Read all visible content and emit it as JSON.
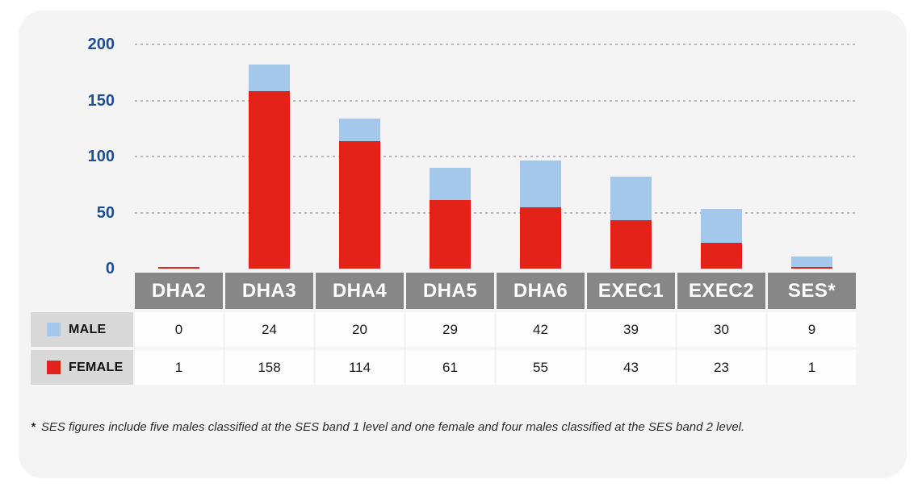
{
  "chart_data": {
    "type": "bar",
    "stacked": true,
    "orientation": "vertical",
    "categories": [
      "DHA2",
      "DHA3",
      "DHA4",
      "DHA5",
      "DHA6",
      "EXEC1",
      "EXEC2",
      "SES*"
    ],
    "series": [
      {
        "name": "MALE",
        "color": "#a3c8ec",
        "values": [
          0,
          24,
          20,
          29,
          42,
          39,
          30,
          9
        ]
      },
      {
        "name": "FEMALE",
        "color": "#e3231a",
        "values": [
          1,
          158,
          114,
          61,
          55,
          43,
          23,
          1
        ]
      }
    ],
    "title": "",
    "xlabel": "",
    "ylabel": "",
    "ylim": [
      0,
      200
    ],
    "yticks": [
      0,
      50,
      100,
      150,
      200
    ],
    "grid": "horizontal dotted",
    "legend_position": "left of data table rows"
  },
  "table": {
    "columns": [
      "DHA2",
      "DHA3",
      "DHA4",
      "DHA5",
      "DHA6",
      "EXEC1",
      "EXEC2",
      "SES*"
    ],
    "rows": [
      {
        "label": "MALE",
        "swatch_color": "#a3c8ec",
        "values": [
          "0",
          "24",
          "20",
          "29",
          "42",
          "39",
          "30",
          "9"
        ]
      },
      {
        "label": "FEMALE",
        "swatch_color": "#e3231a",
        "values": [
          "1",
          "158",
          "114",
          "61",
          "55",
          "43",
          "23",
          "1"
        ]
      }
    ]
  },
  "footnote": {
    "marker": "*",
    "text": "SES figures include five males classified at the SES band 1 level and one female and four males classified at the SES band 2 level."
  },
  "colors": {
    "male": "#a3c8ec",
    "female": "#e3231a",
    "header_bg": "#878787",
    "legend_bg": "#d8d8d8",
    "card_bg": "#f4f4f4",
    "cell_bg": "#fefefe",
    "axis_label": "#1d4f91",
    "gridline": "#b9b9b9"
  }
}
